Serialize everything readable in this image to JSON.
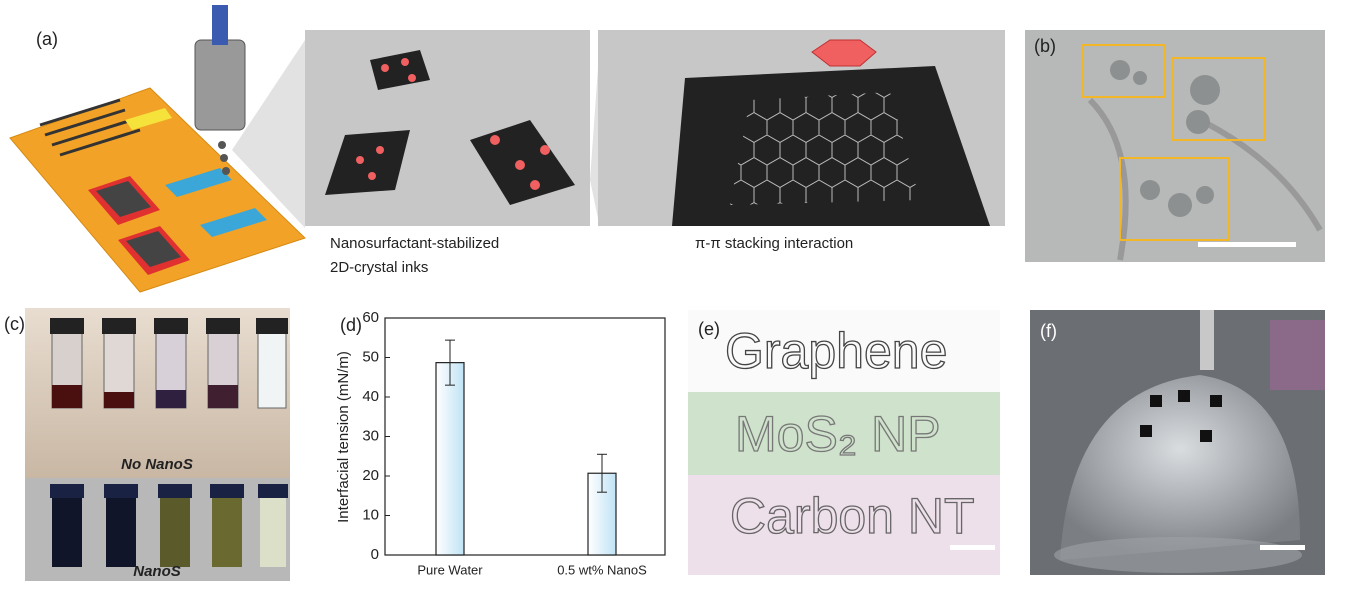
{
  "panels": {
    "a": {
      "label": "(a)",
      "caption_left_1": "Nanosurfactant-stabilized",
      "caption_left_2": "2D-crystal inks",
      "caption_right": "π-π stacking interaction"
    },
    "b": {
      "label": "(b)"
    },
    "c": {
      "label": "(c)",
      "top_label": "No NanoS",
      "bottom_label": "NanoS"
    },
    "d": {
      "label": "(d)"
    },
    "e": {
      "label": "(e)",
      "words": [
        "Graphene",
        "MoS₂ NP",
        "Carbon NT"
      ]
    },
    "f": {
      "label": "(f)"
    }
  },
  "chart_data": {
    "type": "bar",
    "ylabel": "Interfacial tension (mN/m)",
    "categories": [
      "Pure Water",
      "0.5 wt% NanoS"
    ],
    "values": [
      48.7,
      20.7
    ],
    "errors": [
      5.7,
      4.8
    ],
    "color": "#bfe3f4",
    "ylim": [
      0,
      60
    ],
    "yticks": [
      0,
      10,
      20,
      30,
      40,
      50,
      60
    ]
  }
}
